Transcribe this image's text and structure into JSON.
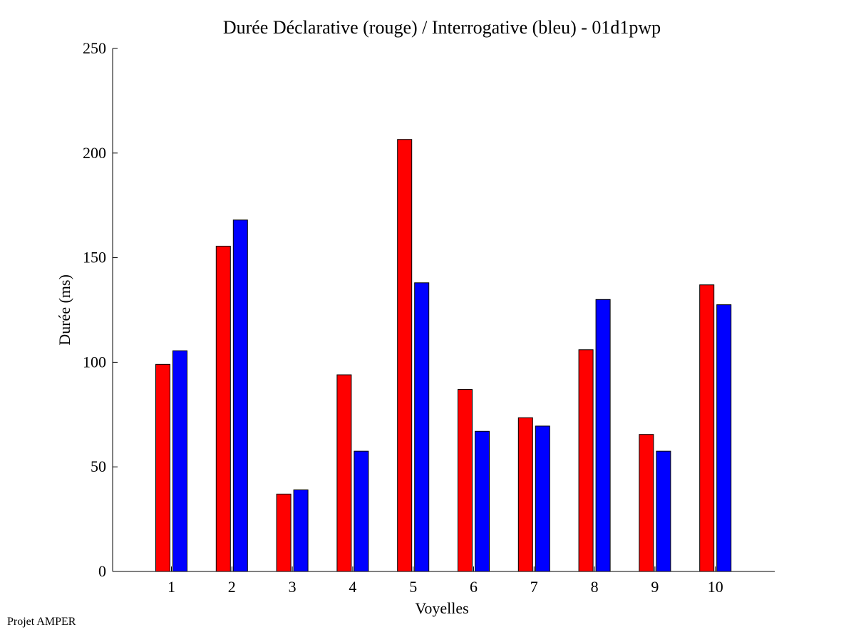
{
  "chart_data": {
    "type": "bar",
    "title": "Durée Déclarative (rouge) / Interrogative (bleu) - 01d1pwp",
    "xlabel": "Voyelles",
    "ylabel": "Durée (ms)",
    "ylim": [
      0,
      250
    ],
    "yticks": [
      0,
      50,
      100,
      150,
      200,
      250
    ],
    "grid": false,
    "categories": [
      "1",
      "2",
      "3",
      "4",
      "5",
      "6",
      "7",
      "8",
      "9",
      "10"
    ],
    "series": [
      {
        "name": "Déclarative",
        "color": "#ff0000",
        "values": [
          99,
          155.5,
          37,
          94,
          206.5,
          87,
          73.5,
          106,
          65.5,
          137
        ]
      },
      {
        "name": "Interrogative",
        "color": "#0000ff",
        "values": [
          105.5,
          168,
          39,
          57.5,
          138,
          67,
          69.5,
          130,
          57.5,
          127.5
        ]
      }
    ]
  },
  "footer": {
    "label": "Projet AMPER"
  }
}
